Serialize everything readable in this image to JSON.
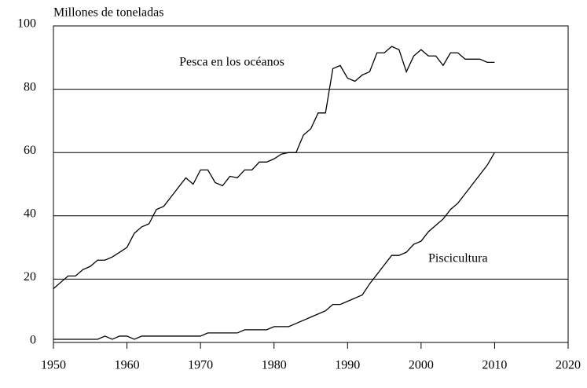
{
  "chart_data": {
    "type": "line",
    "y_label": "Millones de toneladas",
    "x": [
      1950,
      1951,
      1952,
      1953,
      1954,
      1955,
      1956,
      1957,
      1958,
      1959,
      1960,
      1961,
      1962,
      1963,
      1964,
      1965,
      1966,
      1967,
      1968,
      1969,
      1970,
      1971,
      1972,
      1973,
      1974,
      1975,
      1976,
      1977,
      1978,
      1979,
      1980,
      1981,
      1982,
      1983,
      1984,
      1985,
      1986,
      1987,
      1988,
      1989,
      1990,
      1991,
      1992,
      1993,
      1994,
      1995,
      1996,
      1997,
      1998,
      1999,
      2000,
      2001,
      2002,
      2003,
      2004,
      2005,
      2006,
      2007,
      2008,
      2009,
      2010
    ],
    "series": [
      {
        "name": "Pesca en los océanos",
        "color": "#000000",
        "values": [
          17,
          19,
          21,
          21,
          23,
          24,
          26,
          26,
          27,
          28.5,
          30,
          34.5,
          36.5,
          37.5,
          42,
          43,
          46,
          49,
          52,
          50,
          54.5,
          54.5,
          50.5,
          49.5,
          52.5,
          52,
          54.5,
          54.5,
          57,
          57,
          58,
          59.5,
          60,
          60,
          65.5,
          67.5,
          72.5,
          72.5,
          86.5,
          87.5,
          83.5,
          82.5,
          84.5,
          85.5,
          91.5,
          91.5,
          93.5,
          92.5,
          85.5,
          90.5,
          92.5,
          90.5,
          90.5,
          87.5,
          91.5,
          91.5,
          89.5,
          89.5,
          89.5,
          88.5,
          88.5
        ]
      },
      {
        "name": "Piscicultura",
        "color": "#000000",
        "values": [
          1,
          1,
          1,
          1,
          1,
          1,
          1,
          2,
          1,
          2,
          2,
          1,
          2,
          2,
          2,
          2,
          2,
          2,
          2,
          2,
          2,
          3,
          3,
          3,
          3,
          3,
          4,
          4,
          4,
          4,
          5,
          5,
          5,
          6,
          7,
          8,
          9,
          10,
          12,
          12,
          13,
          14,
          15,
          18.5,
          21.5,
          24.5,
          27.5,
          27.5,
          28.5,
          31,
          32,
          35,
          37,
          39,
          42,
          44,
          47,
          50,
          53,
          56,
          60
        ]
      }
    ],
    "xlim": [
      1950,
      2020
    ],
    "xticks": [
      1950,
      1960,
      1970,
      1980,
      1990,
      2000,
      2010,
      2020
    ],
    "ylim": [
      0,
      100
    ],
    "yticks": [
      0,
      20,
      40,
      60,
      80,
      100
    ],
    "grid": true
  }
}
